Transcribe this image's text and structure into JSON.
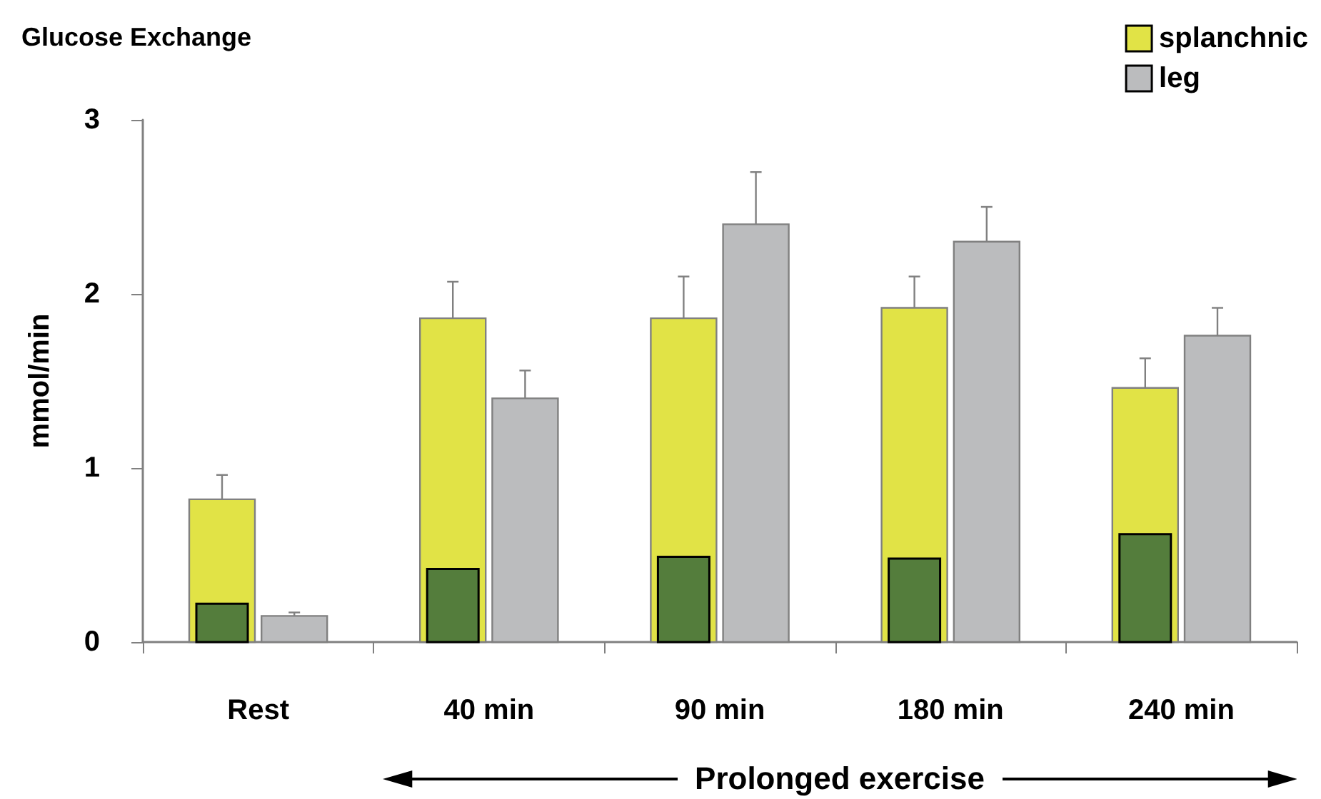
{
  "chart_data": {
    "type": "bar",
    "title": "Glucose Exchange",
    "ylabel": "mmol/min",
    "categories": [
      "Rest",
      "40 min",
      "90 min",
      "180 min",
      "240 min"
    ],
    "series": [
      {
        "name": "splanchnic",
        "color": "#e1e346",
        "values": [
          0.82,
          1.86,
          1.86,
          1.92,
          1.46
        ],
        "errors": [
          [
            0.82,
            0.96
          ],
          [
            1.86,
            2.07
          ],
          [
            1.86,
            2.1
          ],
          [
            1.92,
            2.1
          ],
          [
            1.46,
            1.63
          ]
        ]
      },
      {
        "color": "#547d3c",
        "values": [
          0.22,
          0.42,
          0.49,
          0.48,
          0.62
        ]
      },
      {
        "name": "leg",
        "color": "#bbbcbe",
        "values": [
          0.15,
          1.4,
          2.4,
          2.3,
          1.76
        ],
        "errors": [
          [
            0.15,
            0.17
          ],
          [
            1.4,
            1.56
          ],
          [
            2.4,
            2.7
          ],
          [
            2.3,
            2.5
          ],
          [
            1.76,
            1.92
          ]
        ]
      }
    ],
    "ylim": [
      0,
      3
    ],
    "yticks": [
      0,
      1,
      2,
      3
    ],
    "legend": "top right",
    "annotations": [
      "Prolonged exercise"
    ]
  }
}
